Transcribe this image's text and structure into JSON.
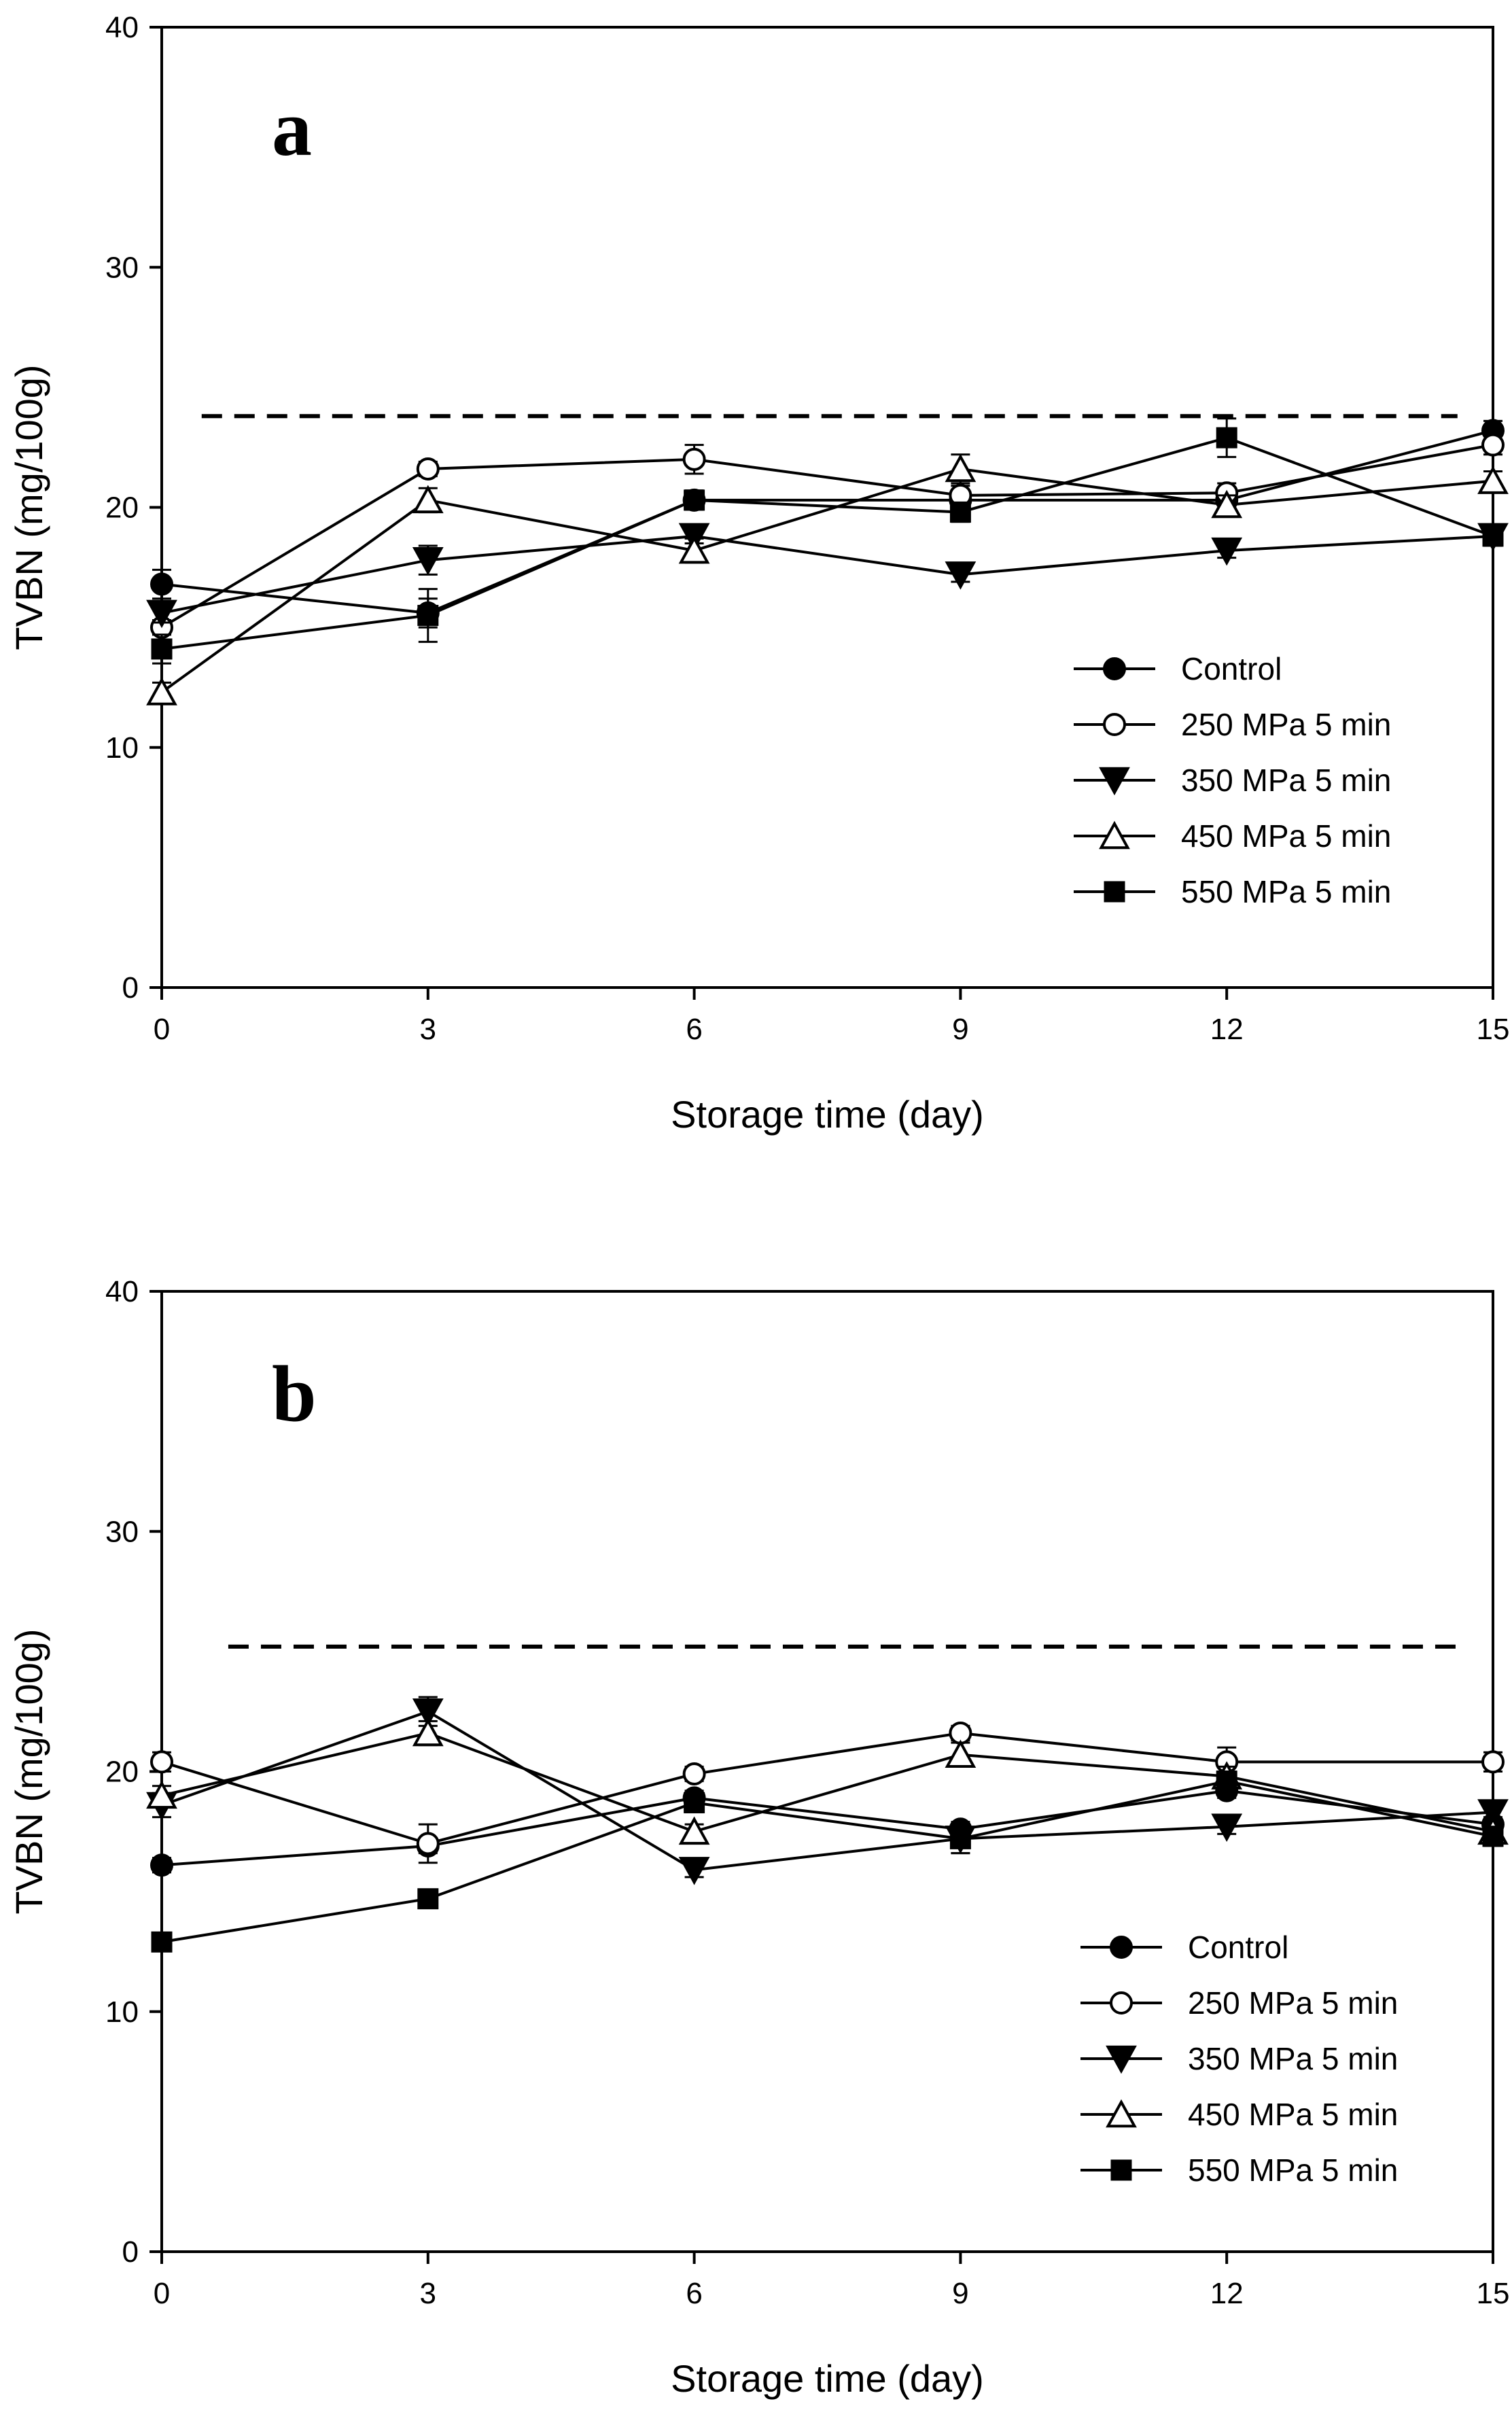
{
  "chart_data": [
    {
      "type": "line",
      "panel_label": "a",
      "title": "",
      "xlabel": "Storage time (day)",
      "ylabel": "TVBN (mg/100g)",
      "x": [
        0,
        3,
        6,
        9,
        12,
        15
      ],
      "x_ticks": [
        "0",
        "3",
        "6",
        "9",
        "12",
        "15"
      ],
      "y_ticks": [
        "0",
        "10",
        "20",
        "30",
        "40"
      ],
      "xlim": [
        0,
        15
      ],
      "ylim": [
        0,
        40
      ],
      "grid": false,
      "legend_position": "bottom-right",
      "reference_line": {
        "y": 23.8,
        "x_from": 0.45,
        "x_to": 14.6,
        "style": "dashed"
      },
      "series": [
        {
          "name": "Control",
          "marker": "filled-circle",
          "values": [
            16.8,
            15.6,
            20.3,
            20.3,
            20.3,
            23.2
          ],
          "errors": [
            0.6,
            0.6,
            0.4,
            0.4,
            0.4,
            0.4
          ]
        },
        {
          "name": "250 MPa 5 min",
          "marker": "open-circle",
          "values": [
            15.0,
            21.6,
            22.0,
            20.5,
            20.6,
            22.6
          ],
          "errors": [
            0.3,
            0.3,
            0.6,
            0.4,
            0.4,
            0.4
          ]
        },
        {
          "name": "350 MPa 5 min",
          "marker": "filled-triangle-down",
          "values": [
            15.6,
            17.8,
            18.8,
            17.2,
            18.2,
            18.8
          ],
          "errors": [
            0.4,
            0.6,
            0.3,
            0.3,
            0.3,
            0.4
          ]
        },
        {
          "name": "450 MPa 5 min",
          "marker": "open-triangle-up",
          "values": [
            12.3,
            20.3,
            18.2,
            21.6,
            20.1,
            21.1
          ],
          "errors": [
            0.4,
            0.5,
            0.5,
            0.6,
            0.4,
            0.4
          ]
        },
        {
          "name": "550 MPa 5 min",
          "marker": "filled-square",
          "values": [
            14.1,
            15.5,
            20.3,
            19.8,
            22.9,
            18.8
          ],
          "errors": [
            0.6,
            1.1,
            0.4,
            0.4,
            0.8,
            0.4
          ]
        }
      ]
    },
    {
      "type": "line",
      "panel_label": "b",
      "title": "",
      "xlabel": "Storage time (day)",
      "ylabel": "TVBN (mg/100g)",
      "x": [
        0,
        3,
        6,
        9,
        12,
        15
      ],
      "x_ticks": [
        "0",
        "3",
        "6",
        "9",
        "12",
        "15"
      ],
      "y_ticks": [
        "0",
        "10",
        "20",
        "30",
        "40"
      ],
      "xlim": [
        0,
        15
      ],
      "ylim": [
        0,
        40
      ],
      "grid": false,
      "legend_position": "bottom-right",
      "reference_line": {
        "y": 25.2,
        "x_from": 0.75,
        "x_to": 14.6,
        "style": "dashed"
      },
      "series": [
        {
          "name": "Control",
          "marker": "filled-circle",
          "values": [
            16.1,
            16.9,
            18.9,
            17.6,
            19.2,
            17.8
          ],
          "errors": [
            0.3,
            0.3,
            0.3,
            0.3,
            0.3,
            0.3
          ]
        },
        {
          "name": "250 MPa 5 min",
          "marker": "open-circle",
          "values": [
            20.4,
            17.0,
            19.9,
            21.6,
            20.4,
            20.4
          ],
          "errors": [
            0.4,
            0.8,
            0.3,
            0.3,
            0.6,
            0.4
          ]
        },
        {
          "name": "350 MPa 5 min",
          "marker": "filled-triangle-down",
          "values": [
            18.6,
            22.5,
            15.9,
            17.2,
            17.7,
            18.3
          ],
          "errors": [
            0.5,
            0.6,
            0.3,
            0.6,
            0.3,
            0.3
          ]
        },
        {
          "name": "450 MPa 5 min",
          "marker": "open-triangle-up",
          "values": [
            19.0,
            21.6,
            17.5,
            20.7,
            19.8,
            17.5
          ],
          "errors": [
            0.4,
            0.5,
            0.3,
            0.5,
            0.4,
            0.4
          ]
        },
        {
          "name": "550 MPa 5 min",
          "marker": "filled-square",
          "values": [
            12.9,
            14.7,
            18.7,
            17.2,
            19.6,
            17.3
          ],
          "errors": [
            0.3,
            0.3,
            0.4,
            0.6,
            0.4,
            0.4
          ]
        }
      ]
    }
  ]
}
